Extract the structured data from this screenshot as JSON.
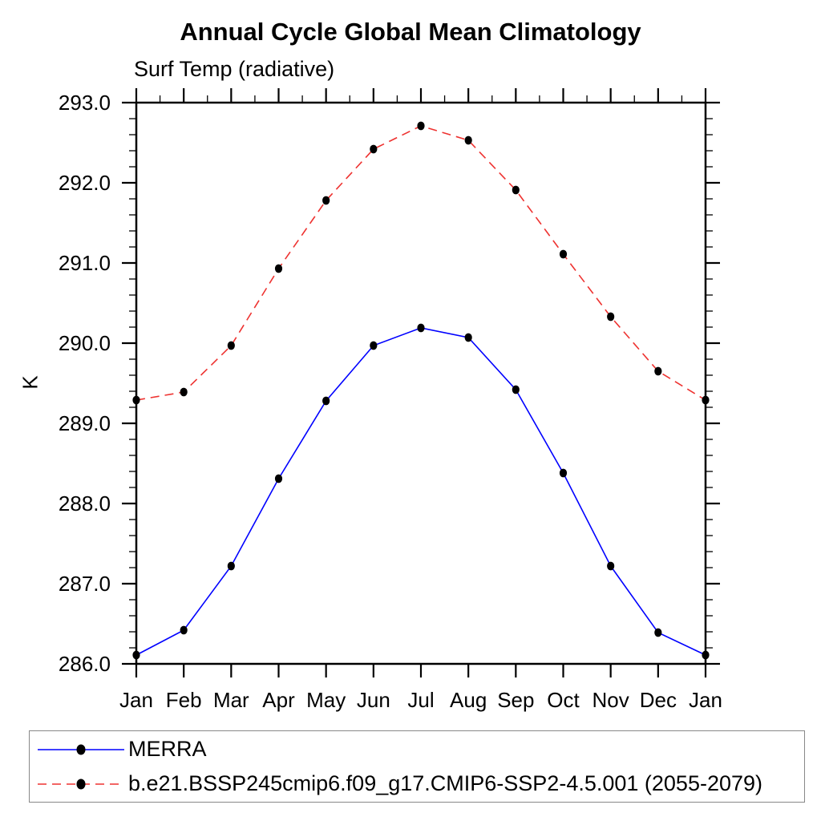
{
  "chart_data": {
    "type": "line",
    "title": "Annual Cycle Global Mean Climatology",
    "subtitle": "Surf Temp (radiative)",
    "ylabel": "K",
    "categories": [
      "Jan",
      "Feb",
      "Mar",
      "Apr",
      "May",
      "Jun",
      "Jul",
      "Aug",
      "Sep",
      "Oct",
      "Nov",
      "Dec",
      "Jan"
    ],
    "ylim": [
      286.0,
      293.0
    ],
    "ytick_interval": 1.0,
    "yminor_interval": 0.2,
    "ytick_labels": [
      "286.0",
      "287.0",
      "288.0",
      "289.0",
      "290.0",
      "291.0",
      "292.0",
      "293.0"
    ],
    "grid": false,
    "legend_position": "bottom",
    "frame_color": "#000000",
    "marker": "filled-circle",
    "series": [
      {
        "name": "MERRA",
        "color": "#0000ff",
        "line_style": "solid",
        "marker_color": "#000000",
        "values": [
          286.11,
          286.42,
          287.22,
          288.31,
          289.28,
          289.97,
          290.19,
          290.07,
          289.42,
          288.38,
          287.22,
          286.39,
          286.11
        ]
      },
      {
        "name": "b.e21.BSSP245cmip6.f09_g17.CMIP6-SSP2-4.5.001 (2055-2079)",
        "color": "#ee3230",
        "line_style": "dashed",
        "marker_color": "#000000",
        "values": [
          289.29,
          289.39,
          289.97,
          290.93,
          291.78,
          292.42,
          292.71,
          292.53,
          291.91,
          291.11,
          290.33,
          289.65,
          289.29
        ]
      }
    ]
  }
}
